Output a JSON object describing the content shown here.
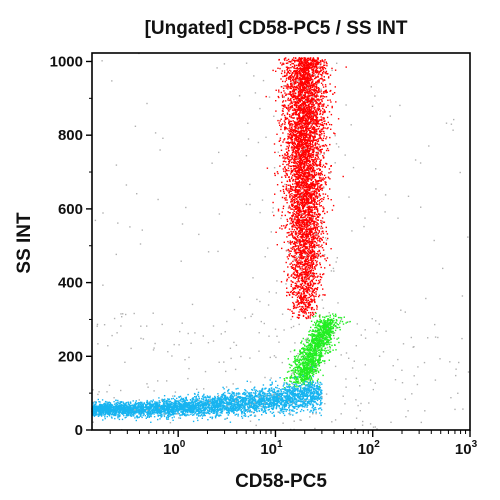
{
  "chart_data": {
    "type": "scatter",
    "title": "[Ungated] CD58-PC5 / SS INT",
    "xlabel": "CD58-PC5",
    "ylabel": "SS INT",
    "x_scale": "log",
    "xlim": [
      0.13,
      1000
    ],
    "ylim": [
      0,
      1023
    ],
    "x_ticks": [
      {
        "value": 1,
        "base": "10",
        "exp": "0"
      },
      {
        "value": 10,
        "base": "10",
        "exp": "1"
      },
      {
        "value": 100,
        "base": "10",
        "exp": "2"
      },
      {
        "value": 1000,
        "base": "10",
        "exp": "3"
      }
    ],
    "y_ticks": [
      0,
      200,
      400,
      600,
      800,
      1000
    ],
    "grid": false,
    "legend": "none",
    "series": [
      {
        "color": "#ff0000",
        "points": 5200,
        "x_center": 20,
        "x_spread_log": 0.085,
        "y_range": [
          300,
          1010
        ]
      },
      {
        "color": "#22ee22",
        "points": 1400,
        "x_range": [
          14,
          45
        ],
        "y_range": [
          130,
          300
        ]
      },
      {
        "color": "#17b4f0",
        "points": 4200,
        "x_range": [
          0.13,
          30
        ],
        "y_range": [
          35,
          140
        ]
      },
      {
        "color": "#b0b0b0",
        "points": 450,
        "x_range": [
          0.13,
          1000
        ],
        "y_range": [
          0,
          1023
        ]
      }
    ]
  }
}
